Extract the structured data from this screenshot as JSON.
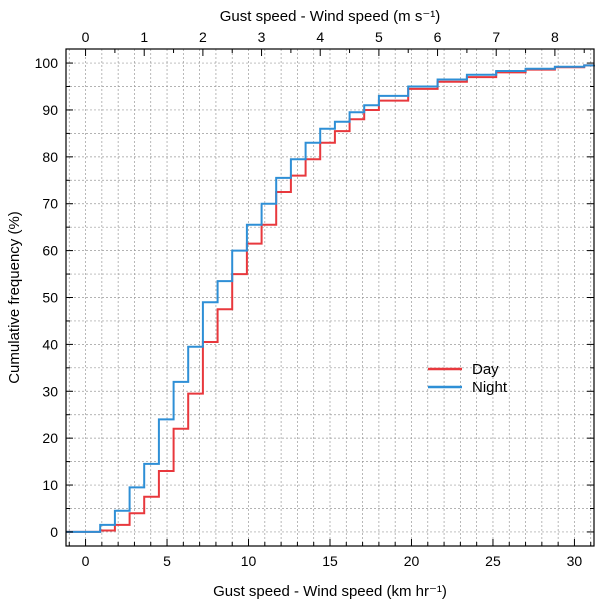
{
  "chart_data": {
    "type": "line",
    "step": true,
    "title": "",
    "xlabel_bottom": "Gust speed - Wind speed (km hr⁻¹)",
    "xlabel_top": "Gust speed - Wind speed (m s⁻¹)",
    "ylabel": "Cumulative frequency (%)",
    "xlim": [
      -1.2,
      31.2
    ],
    "ylim": [
      -3,
      103
    ],
    "x_ticks": [
      0,
      5,
      10,
      15,
      20,
      25,
      30
    ],
    "x_tick_labels": [
      "0",
      "5",
      "10",
      "15",
      "20",
      "25",
      "30"
    ],
    "x2_ticks": [
      0,
      1,
      2,
      3,
      4,
      5,
      6,
      7,
      8
    ],
    "x2_tick_labels": [
      "0",
      "1",
      "2",
      "3",
      "4",
      "5",
      "6",
      "7",
      "8"
    ],
    "x2_factor": 3.6,
    "y_ticks": [
      0,
      10,
      20,
      30,
      40,
      50,
      60,
      70,
      80,
      90,
      100
    ],
    "y_tick_labels": [
      "0",
      "10",
      "20",
      "30",
      "40",
      "50",
      "60",
      "70",
      "80",
      "90",
      "100"
    ],
    "grid": true,
    "legend_position": "center-right",
    "series": [
      {
        "name": "Day",
        "color": "#e8383d",
        "x": [
          -1.2,
          0.9,
          1.8,
          2.7,
          3.6,
          4.5,
          5.4,
          6.3,
          7.2,
          8.1,
          9.0,
          9.9,
          10.8,
          11.7,
          12.6,
          13.5,
          14.4,
          15.3,
          16.2,
          17.1,
          18.0,
          19.8,
          21.6,
          23.4,
          25.2,
          27.0,
          28.8,
          30.6,
          31.2
        ],
        "y": [
          0,
          0.3,
          1.5,
          4,
          7.5,
          13,
          22,
          29.5,
          40.5,
          47.5,
          55,
          61.5,
          65.5,
          72.5,
          76,
          79.5,
          83,
          85.5,
          88,
          90,
          92,
          94.5,
          96,
          97,
          98,
          98.6,
          99.1,
          99.5,
          99.6
        ]
      },
      {
        "name": "Night",
        "color": "#2e8fd6",
        "x": [
          -1.2,
          0.9,
          1.8,
          2.7,
          3.6,
          4.5,
          5.4,
          6.3,
          7.2,
          8.1,
          9.0,
          9.9,
          10.8,
          11.7,
          12.6,
          13.5,
          14.4,
          15.3,
          16.2,
          17.1,
          18.0,
          19.8,
          21.6,
          23.4,
          25.2,
          27.0,
          28.8,
          30.6,
          31.2
        ],
        "y": [
          0,
          1.5,
          4.5,
          9.5,
          14.5,
          24,
          32,
          39.5,
          49,
          53.5,
          60,
          65.5,
          70,
          75.5,
          79.5,
          83,
          86,
          87.5,
          89.5,
          91,
          93,
          95,
          96.5,
          97.5,
          98.3,
          98.8,
          99.2,
          99.5,
          99.6
        ]
      }
    ]
  }
}
